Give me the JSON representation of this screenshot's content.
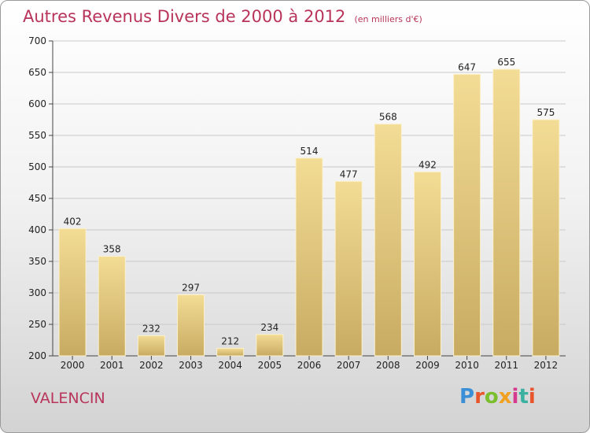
{
  "header": {
    "title": "Autres Revenus Divers de 2000 à 2012",
    "unit": "(en milliers d'€)"
  },
  "footer": {
    "commune": "VALENCIN",
    "logo": "Proxiti"
  },
  "colors": {
    "title": "#b8345a",
    "bar_light": "#f3dc95",
    "bar_dark": "#c8ab62",
    "grid": "#c9c9c9"
  },
  "chart_data": {
    "type": "bar",
    "title": "Autres Revenus Divers de 2000 à 2012",
    "subtitle": "(en milliers d'€)",
    "categories": [
      "2000",
      "2001",
      "2002",
      "2003",
      "2004",
      "2005",
      "2006",
      "2007",
      "2008",
      "2009",
      "2010",
      "2011",
      "2012"
    ],
    "values": [
      402,
      358,
      232,
      297,
      212,
      234,
      514,
      477,
      568,
      492,
      647,
      655,
      575
    ],
    "ylim": [
      200,
      700
    ],
    "yticks": [
      200,
      250,
      300,
      350,
      400,
      450,
      500,
      550,
      600,
      650,
      700
    ],
    "grid": true,
    "legend": "none"
  }
}
